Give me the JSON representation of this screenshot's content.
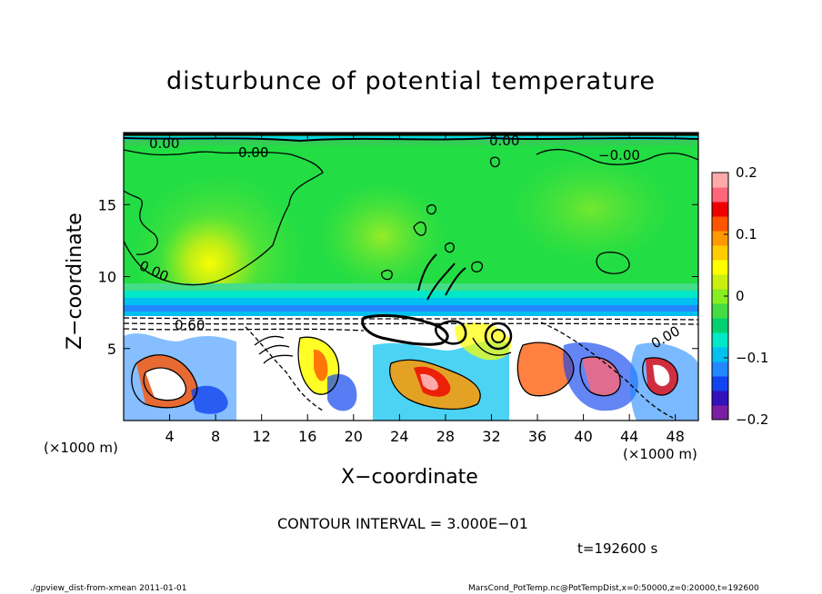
{
  "chart_data": {
    "type": "heatmap",
    "title": "disturbunce of potential temperature",
    "xlabel": "X−coordinate",
    "ylabel": "Z−coordinate",
    "x_unit_label": "(×1000 m)",
    "xlim": [
      0,
      50
    ],
    "ylim": [
      0,
      20
    ],
    "x_ticks": [
      4,
      8,
      12,
      16,
      20,
      24,
      28,
      32,
      36,
      40,
      44,
      48
    ],
    "y_ticks": [
      5,
      10,
      15
    ],
    "colorbar": {
      "range": [
        -0.2,
        0.2
      ],
      "ticks": [
        {
          "value": 0.2,
          "label": "0.2"
        },
        {
          "value": 0.1,
          "label": "0.1"
        },
        {
          "value": 0,
          "label": "0"
        },
        {
          "value": -0.1,
          "label": "−0.1"
        },
        {
          "value": -0.2,
          "label": "−0.2"
        }
      ],
      "colors": [
        "#7b1fa2",
        "#3311bb",
        "#1144ee",
        "#2288ff",
        "#00c0f0",
        "#00e8c8",
        "#00d070",
        "#44dd44",
        "#88ee22",
        "#ccee11",
        "#ffff00",
        "#ffcc00",
        "#ff9900",
        "#ff5500",
        "#ee0000",
        "#ff6677",
        "#ffaaaa"
      ]
    },
    "contour_labels": [
      "0.00",
      "0.00",
      "0.00",
      "−0.00",
      "0.00",
      "0.60",
      "0.00"
    ],
    "contour_interval_label": "CONTOUR INTERVAL = 3.000E−01",
    "time_label": "t=192600 s"
  },
  "footer": {
    "left": "./gpview_dist-from-xmean  2011-01-01",
    "right": "MarsCond_PotTemp.nc@PotTempDist,x=0:50000,z=0:20000,t=192600"
  },
  "colors": {
    "background_green": "#22dd44",
    "upper_light_green": "#77ee33"
  }
}
